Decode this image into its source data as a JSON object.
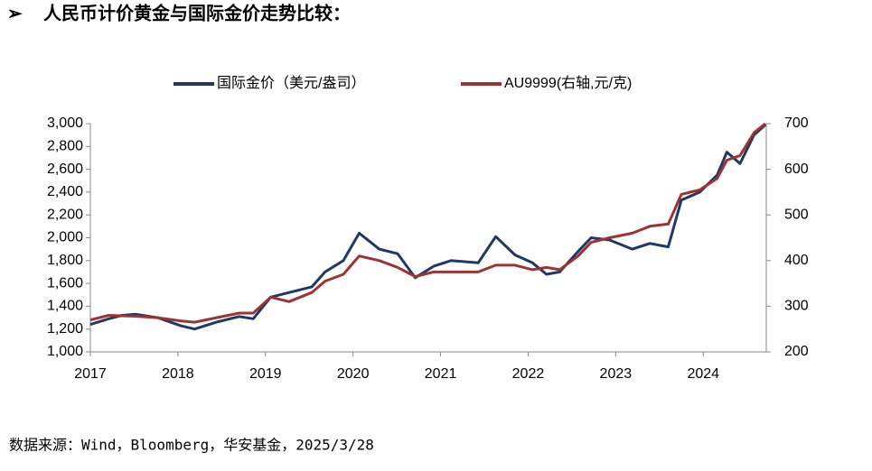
{
  "header": {
    "bullet": "➢",
    "title": "人民币计价黄金与国际金价走势比较："
  },
  "chart_data": {
    "type": "line",
    "x": [
      2017.0,
      2017.21,
      2017.36,
      2017.52,
      2017.77,
      2018.03,
      2018.19,
      2018.44,
      2018.7,
      2018.86,
      2019.06,
      2019.27,
      2019.53,
      2019.68,
      2019.89,
      2020.07,
      2020.3,
      2020.51,
      2020.71,
      2020.92,
      2021.12,
      2021.43,
      2021.63,
      2021.85,
      2022.05,
      2022.21,
      2022.36,
      2022.57,
      2022.72,
      2022.93,
      2023.19,
      2023.39,
      2023.6,
      2023.75,
      2023.96,
      2024.16,
      2024.27,
      2024.42,
      2024.58,
      2024.71
    ],
    "series": [
      {
        "name": "国际金价（美元/盎司）",
        "color": "#1f3864",
        "values": [
          1240,
          1290,
          1320,
          1330,
          1300,
          1230,
          1200,
          1260,
          1310,
          1290,
          1480,
          1520,
          1570,
          1700,
          1800,
          2040,
          1900,
          1860,
          1650,
          1750,
          1800,
          1780,
          2010,
          1850,
          1780,
          1680,
          1700,
          1880,
          2000,
          1980,
          1900,
          1950,
          1920,
          2330,
          2400,
          2550,
          2750,
          2650,
          2900,
          2990
        ]
      },
      {
        "name": "AU9999(右轴,元/克)",
        "color": "#9e3333",
        "axis": "y2",
        "values": [
          270,
          280,
          279,
          278,
          275,
          268,
          265,
          275,
          285,
          285,
          320,
          310,
          330,
          355,
          370,
          410,
          400,
          385,
          365,
          375,
          375,
          375,
          390,
          390,
          380,
          385,
          380,
          410,
          440,
          450,
          460,
          475,
          480,
          545,
          555,
          580,
          620,
          630,
          680,
          700
        ]
      }
    ],
    "xlim": [
      2017,
      2024.72
    ],
    "xticks": [
      2017,
      2018,
      2019,
      2020,
      2021,
      2022,
      2023,
      2024
    ],
    "ylim": [
      1000,
      3000
    ],
    "yticks": [
      {
        "value": 1000,
        "label": "1,000"
      },
      {
        "value": 1200,
        "label": "1,200"
      },
      {
        "value": 1400,
        "label": "1,400"
      },
      {
        "value": 1600,
        "label": "1,600"
      },
      {
        "value": 1800,
        "label": "1,800"
      },
      {
        "value": 2000,
        "label": "2,000"
      },
      {
        "value": 2200,
        "label": "2,200"
      },
      {
        "value": 2400,
        "label": "2,400"
      },
      {
        "value": 2600,
        "label": "2,600"
      },
      {
        "value": 2800,
        "label": "2,800"
      },
      {
        "value": 3000,
        "label": "3,000"
      }
    ],
    "y2lim": [
      200,
      700
    ],
    "y2ticks": [
      200,
      300,
      400,
      500,
      600,
      700
    ],
    "legend": "top",
    "grid": false
  },
  "footer": {
    "source": "数据来源：Wind，Bloomberg，华安基金，2025/3/28"
  }
}
